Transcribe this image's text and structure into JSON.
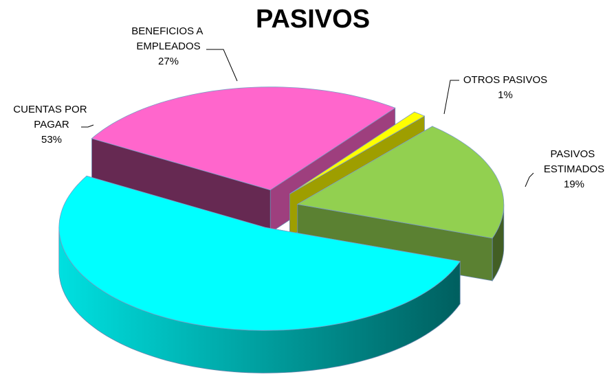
{
  "chart_data": {
    "type": "pie3d",
    "title": "PASIVOS",
    "categories": [
      "BENEFICIOS A EMPLEADOS",
      "OTROS PASIVOS",
      "PASIVOS ESTIMADOS",
      "CUENTAS POR PAGAR"
    ],
    "values": [
      27,
      1,
      19,
      53
    ],
    "value_labels": [
      "27%",
      "1%",
      "19%",
      "53%"
    ],
    "colors": [
      "#ff66cc",
      "#ffff00",
      "#92d050",
      "#00ffff"
    ]
  }
}
